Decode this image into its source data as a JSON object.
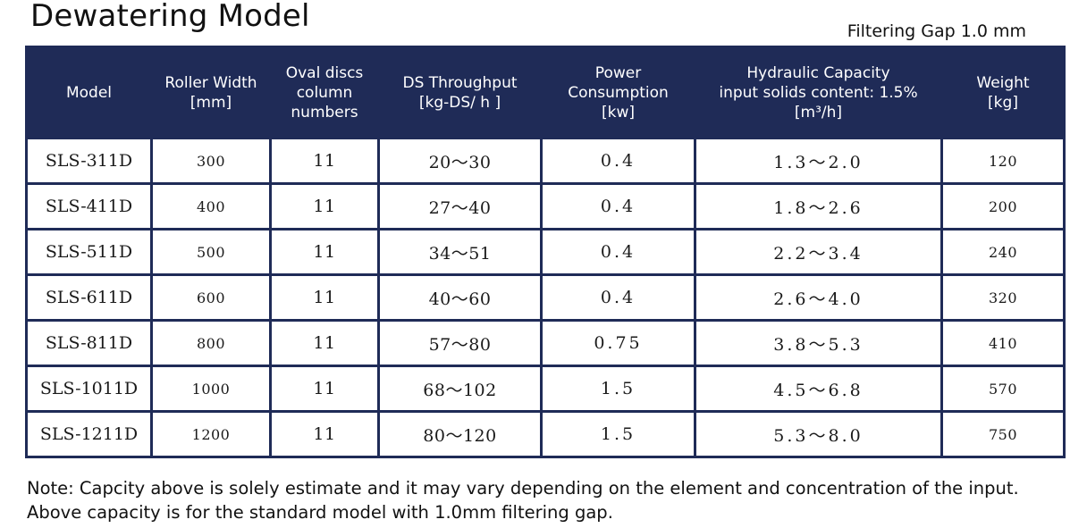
{
  "title": "Dewatering Model",
  "subtitle": "Filtering Gap 1.0 mm",
  "table": {
    "headers": [
      {
        "key": "model",
        "lines": [
          "Model"
        ]
      },
      {
        "key": "roller_width",
        "lines": [
          "Roller Width",
          "[mm]"
        ]
      },
      {
        "key": "oval_discs",
        "lines": [
          "Oval discs",
          "column",
          "numbers"
        ]
      },
      {
        "key": "ds_throughput",
        "lines": [
          "DS Throughput",
          "[kg-DS/ h ]"
        ]
      },
      {
        "key": "power",
        "lines": [
          "Power",
          "Consumption",
          "[kw]"
        ]
      },
      {
        "key": "hydraulic_capacity",
        "lines": [
          "Hydraulic Capacity",
          "input solids content: 1.5%",
          "[m³/h]"
        ]
      },
      {
        "key": "weight",
        "lines": [
          "Weight",
          "[kg]"
        ]
      }
    ],
    "rows": [
      {
        "model": "SLS-311D",
        "roller_width": "300",
        "oval_discs": "11",
        "ds_throughput": "20～30",
        "power": "0.4",
        "hydraulic_capacity": "1.3～2.0",
        "weight": "120"
      },
      {
        "model": "SLS-411D",
        "roller_width": "400",
        "oval_discs": "11",
        "ds_throughput": "27～40",
        "power": "0.4",
        "hydraulic_capacity": "1.8～2.6",
        "weight": "200"
      },
      {
        "model": "SLS-511D",
        "roller_width": "500",
        "oval_discs": "11",
        "ds_throughput": "34～51",
        "power": "0.4",
        "hydraulic_capacity": "2.2～3.4",
        "weight": "240"
      },
      {
        "model": "SLS-611D",
        "roller_width": "600",
        "oval_discs": "11",
        "ds_throughput": "40～60",
        "power": "0.4",
        "hydraulic_capacity": "2.6～4.0",
        "weight": "320"
      },
      {
        "model": "SLS-811D",
        "roller_width": "800",
        "oval_discs": "11",
        "ds_throughput": "57～80",
        "power": "0.75",
        "hydraulic_capacity": "3.8～5.3",
        "weight": "410"
      },
      {
        "model": "SLS-1011D",
        "roller_width": "1000",
        "oval_discs": "11",
        "ds_throughput": "68～102",
        "power": "1.5",
        "hydraulic_capacity": "4.5～6.8",
        "weight": "570"
      },
      {
        "model": "SLS-1211D",
        "roller_width": "1200",
        "oval_discs": "11",
        "ds_throughput": "80～120",
        "power": "1.5",
        "hydraulic_capacity": "5.3～8.0",
        "weight": "750"
      }
    ]
  },
  "note": {
    "line1": "Note: Capcity above is solely estimate and it may vary depending on the element and concentration of the input.",
    "line2": "Above capacity is for the standard model with 1.0mm  filtering gap."
  },
  "colors": {
    "header_bg": "#1f2b57",
    "header_text": "#ffffff",
    "border": "#1f2b57"
  }
}
